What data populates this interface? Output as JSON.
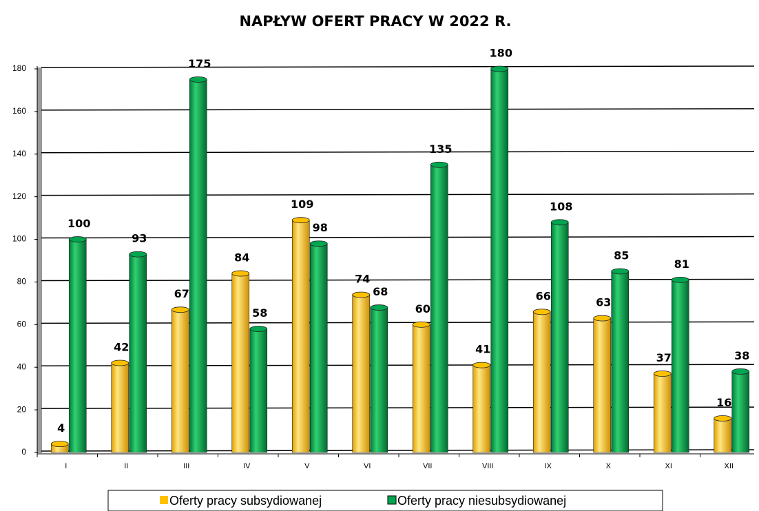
{
  "chart_data": {
    "type": "bar",
    "title": "NAPŁYW OFERT PRACY W 2022 R.",
    "categories": [
      "I",
      "II",
      "III",
      "IV",
      "V",
      "VI",
      "VII",
      "VIII",
      "IX",
      "X",
      "XI",
      "XII"
    ],
    "series": [
      {
        "name": "Oferty pracy subsydiowanej",
        "color": "#ffc000",
        "values": [
          4,
          42,
          67,
          84,
          109,
          74,
          60,
          41,
          66,
          63,
          37,
          16
        ]
      },
      {
        "name": "Oferty pracy niesubsydiowanej",
        "color": "#00a650",
        "values": [
          100,
          93,
          175,
          58,
          98,
          68,
          135,
          180,
          108,
          85,
          81,
          38
        ]
      }
    ],
    "ylim": [
      0,
      180
    ],
    "yticks": [
      0,
      20,
      40,
      60,
      80,
      100,
      120,
      140,
      160,
      180
    ],
    "grid": true,
    "legend": "bottom"
  }
}
